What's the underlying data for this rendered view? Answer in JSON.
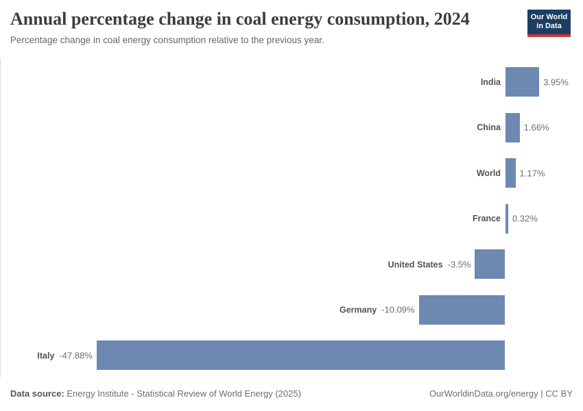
{
  "header": {
    "title": "Annual percentage change in coal energy consumption, 2024",
    "subtitle": "Percentage change in coal energy consumption relative to the previous year.",
    "logo_line1": "Our World",
    "logo_line2": "in Data",
    "logo_bg_color": "#1d3d63",
    "logo_accent_color": "#cc3434"
  },
  "chart_data": {
    "type": "bar",
    "orientation": "horizontal",
    "title": "Annual percentage change in coal energy consumption, 2024",
    "xlabel": "",
    "ylabel": "",
    "value_suffix": "%",
    "categories": [
      "India",
      "China",
      "World",
      "France",
      "United States",
      "Germany",
      "Italy"
    ],
    "values": [
      3.95,
      1.66,
      1.17,
      0.32,
      -3.5,
      -10.09,
      -47.88
    ],
    "value_labels": [
      "3.95%",
      "1.66%",
      "1.17%",
      "0.32%",
      "-3.5%",
      "-10.09%",
      "-47.88%"
    ],
    "xlim": [
      -47.88,
      3.95
    ],
    "grid": false,
    "legend": false,
    "bar_color": "#6d88b1",
    "zero_line_color": "#dddddd"
  },
  "footer": {
    "source_label": "Data source:",
    "source_text": "Energy Institute - Statistical Review of World Energy (2025)",
    "site": "OurWorldinData.org/energy | CC BY"
  }
}
